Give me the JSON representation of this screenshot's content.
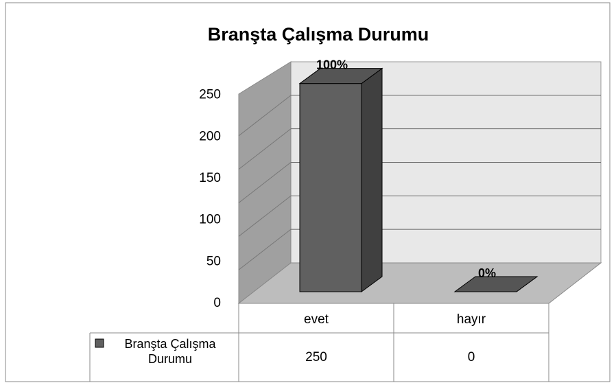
{
  "chart_data": {
    "type": "bar3d",
    "title": "Branşta Çalışma Durumu",
    "categories": [
      "evet",
      "hayır"
    ],
    "series": [
      {
        "name": "Branşta Çalışma Durumu",
        "color": "#606060",
        "values": [
          250,
          0
        ],
        "value_labels": [
          "100%",
          "0%"
        ]
      }
    ],
    "ylim": [
      0,
      300
    ],
    "yticks": [
      0,
      50,
      100,
      150,
      200,
      250
    ],
    "grid": true,
    "data_table": true
  }
}
